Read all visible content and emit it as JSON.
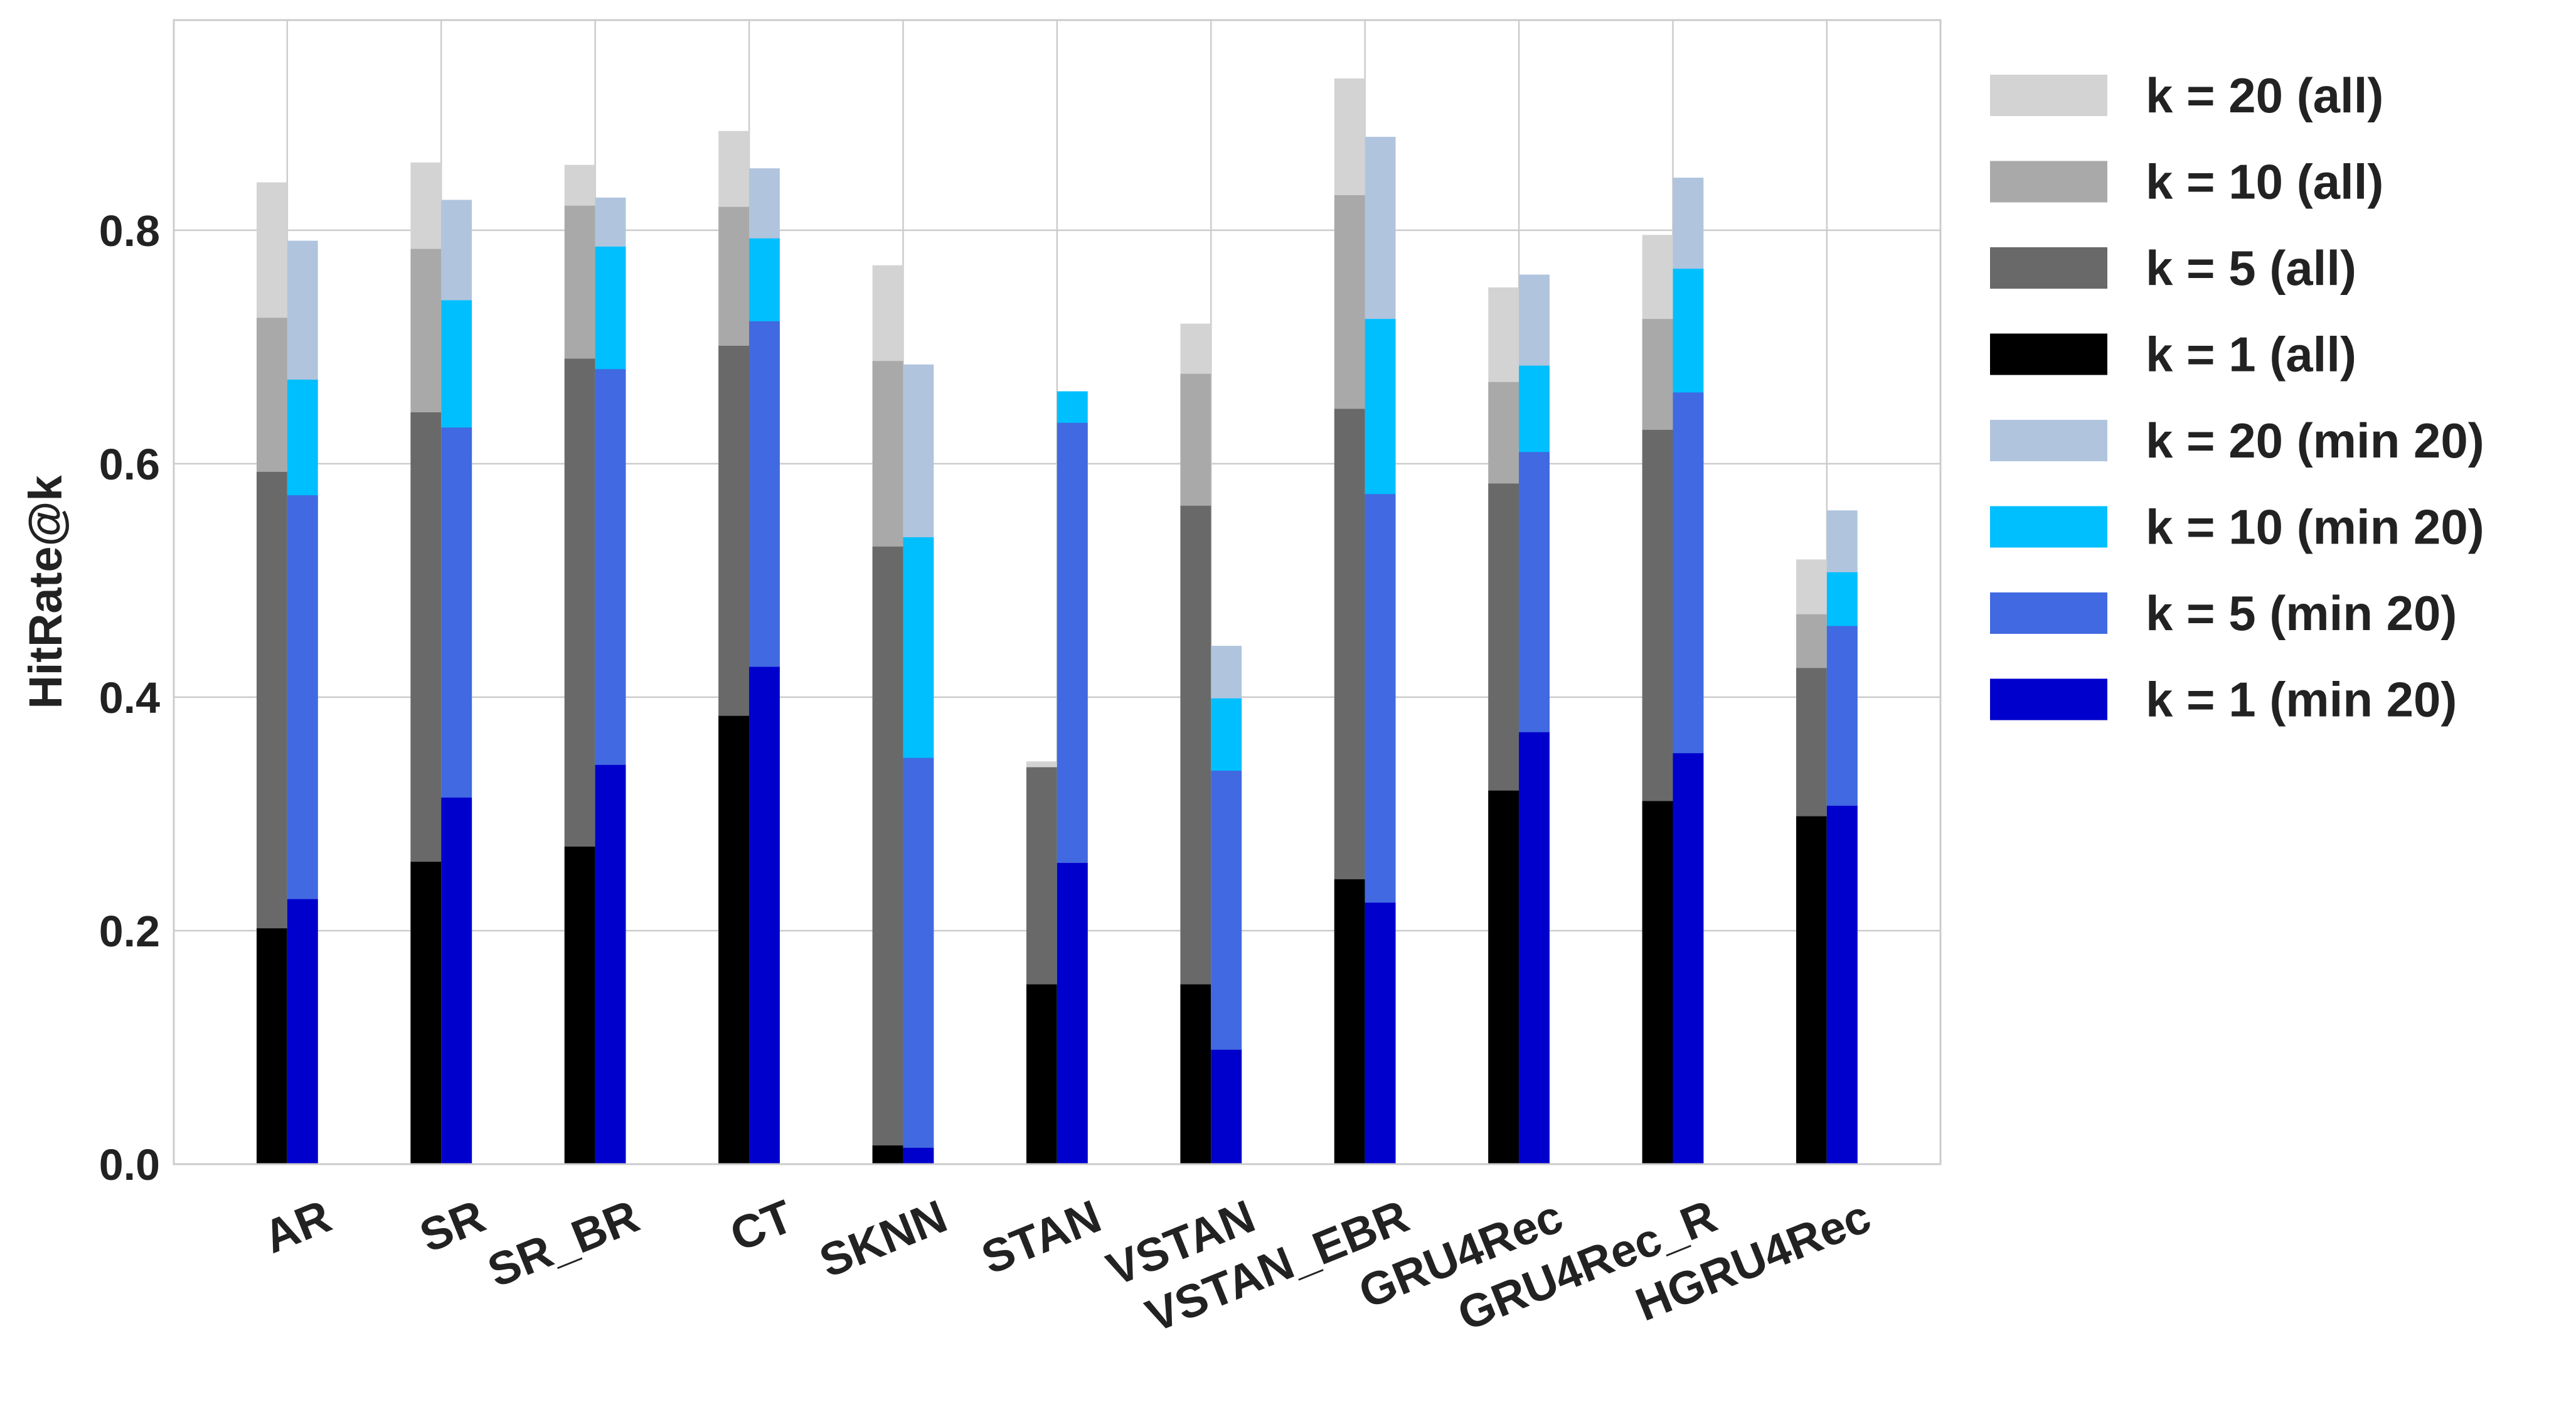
{
  "chart_data": {
    "type": "bar",
    "ylabel": "HitRate@k",
    "xlabel": "",
    "ylim": [
      0,
      0.98
    ],
    "yticks": [
      "0.0",
      "0.2",
      "0.4",
      "0.6",
      "0.8"
    ],
    "grid": true,
    "legend_position": "right-outside-top",
    "categories": [
      "AR",
      "SR",
      "SR_BR",
      "CT",
      "SKNN",
      "STAN",
      "VSTAN",
      "VSTAN_EBR",
      "GRU4Rec",
      "GRU4Rec_R",
      "HGRU4Rec"
    ],
    "groups": [
      {
        "name": "all",
        "series": [
          {
            "label": "k = 20 (all)",
            "color": "#d3d3d3",
            "values": [
              0.841,
              0.858,
              0.856,
              0.885,
              0.77,
              0.345,
              0.72,
              0.93,
              0.751,
              0.796,
              0.518
            ]
          },
          {
            "label": "k = 10 (all)",
            "color": "#a9a9a9",
            "values": [
              0.725,
              0.784,
              0.821,
              0.82,
              0.688,
              0.34,
              0.677,
              0.83,
              0.67,
              0.724,
              0.471
            ]
          },
          {
            "label": "k = 5 (all)",
            "color": "#696969",
            "values": [
              0.593,
              0.644,
              0.69,
              0.701,
              0.529,
              0.34,
              0.564,
              0.647,
              0.583,
              0.629,
              0.425
            ]
          },
          {
            "label": "k = 1 (all)",
            "color": "#000000",
            "values": [
              0.202,
              0.259,
              0.272,
              0.384,
              0.016,
              0.154,
              0.154,
              0.244,
              0.32,
              0.311,
              0.298
            ]
          }
        ]
      },
      {
        "name": "min 20",
        "series": [
          {
            "label": "k = 20 (min 20)",
            "color": "#b0c4de",
            "values": [
              0.791,
              0.826,
              0.828,
              0.853,
              0.685,
              0.662,
              0.444,
              0.88,
              0.762,
              0.845,
              0.56
            ]
          },
          {
            "label": "k = 10 (min 20)",
            "color": "#00bfff",
            "values": [
              0.672,
              0.74,
              0.786,
              0.793,
              0.537,
              0.662,
              0.399,
              0.724,
              0.684,
              0.767,
              0.507
            ]
          },
          {
            "label": "k = 5 (min 20)",
            "color": "#4169e1",
            "values": [
              0.573,
              0.631,
              0.681,
              0.722,
              0.348,
              0.635,
              0.337,
              0.574,
              0.61,
              0.661,
              0.461
            ]
          },
          {
            "label": "k = 1 (min 20)",
            "color": "#0000cd",
            "values": [
              0.227,
              0.314,
              0.342,
              0.426,
              0.014,
              0.258,
              0.098,
              0.224,
              0.37,
              0.352,
              0.307
            ]
          }
        ]
      }
    ]
  }
}
